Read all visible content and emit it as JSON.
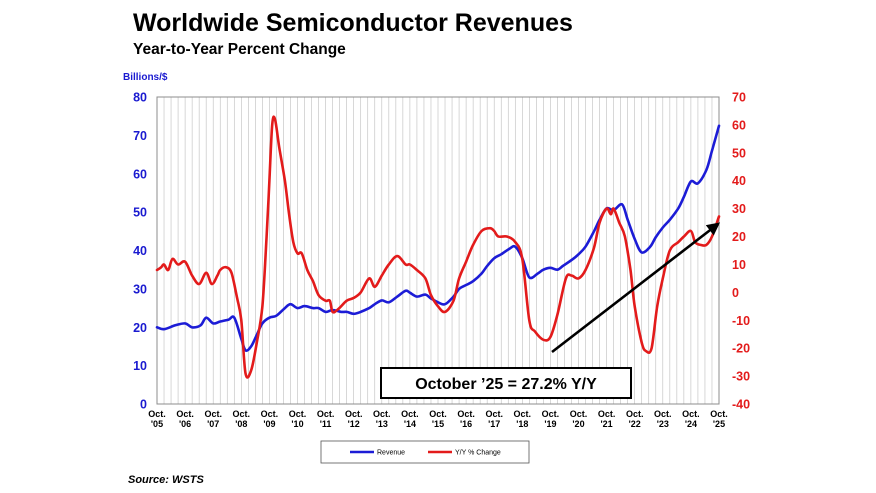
{
  "title": "Worldwide Semiconductor Revenues",
  "subtitle": "Year-to-Year Percent Change",
  "source": "Source: WSTS",
  "annotation": "October ’25 = 27.2% Y/Y",
  "colors": {
    "revenue": "#1c1cd6",
    "yoy": "#e31b1b",
    "grid": "#bdbdbd",
    "arrow": "#000000"
  },
  "chart_data": {
    "type": "line",
    "left_axis": {
      "unit": "Billions/$",
      "range": [
        0,
        80
      ],
      "ticks": [
        "0",
        "10",
        "20",
        "30",
        "40",
        "50",
        "60",
        "70",
        "80"
      ]
    },
    "right_axis": {
      "range": [
        -40,
        70
      ],
      "ticks": [
        "-40",
        "-30",
        "-20",
        "-10",
        "0",
        "10",
        "20",
        "30",
        "40",
        "50",
        "60",
        "70"
      ]
    },
    "x_labels": [
      [
        "Oct.",
        "'05"
      ],
      [
        "Oct.",
        "'06"
      ],
      [
        "Oct.",
        "'07"
      ],
      [
        "Oct.",
        "'08"
      ],
      [
        "Oct.",
        "'09"
      ],
      [
        "Oct.",
        "'10"
      ],
      [
        "Oct.",
        "'11"
      ],
      [
        "Oct.",
        "'12"
      ],
      [
        "Oct.",
        "'13"
      ],
      [
        "Oct.",
        "'14"
      ],
      [
        "Oct.",
        "'15"
      ],
      [
        "Oct.",
        "'16"
      ],
      [
        "Oct.",
        "'17"
      ],
      [
        "Oct.",
        "'18"
      ],
      [
        "Oct.",
        "'19"
      ],
      [
        "Oct.",
        "'20"
      ],
      [
        "Oct.",
        "'21"
      ],
      [
        "Oct.",
        "'22"
      ],
      [
        "Oct.",
        "'23"
      ],
      [
        "Oct.",
        "'24"
      ],
      [
        "Oct.",
        "'25"
      ]
    ],
    "x_range": [
      2005.75,
      2025.75
    ],
    "grid": "vertical",
    "legend": {
      "position": "bottom-center",
      "entries": [
        "Revenue",
        "Y/Y % Change"
      ]
    },
    "series": [
      {
        "name": "Revenue",
        "axis": "left",
        "points": [
          [
            2005.75,
            20
          ],
          [
            2006.0,
            19.5
          ],
          [
            2006.4,
            20.5
          ],
          [
            2006.75,
            21
          ],
          [
            2007.0,
            20
          ],
          [
            2007.3,
            20.5
          ],
          [
            2007.5,
            22.5
          ],
          [
            2007.75,
            21
          ],
          [
            2008.0,
            21.5
          ],
          [
            2008.3,
            22
          ],
          [
            2008.5,
            22.5
          ],
          [
            2008.75,
            17
          ],
          [
            2008.9,
            14
          ],
          [
            2009.1,
            15
          ],
          [
            2009.3,
            18
          ],
          [
            2009.5,
            21
          ],
          [
            2009.75,
            22.5
          ],
          [
            2010.0,
            23
          ],
          [
            2010.3,
            25
          ],
          [
            2010.5,
            26
          ],
          [
            2010.75,
            25
          ],
          [
            2011.0,
            25.5
          ],
          [
            2011.3,
            25
          ],
          [
            2011.5,
            25
          ],
          [
            2011.75,
            24
          ],
          [
            2012.0,
            24.5
          ],
          [
            2012.3,
            24
          ],
          [
            2012.5,
            24
          ],
          [
            2012.75,
            23.5
          ],
          [
            2013.0,
            24
          ],
          [
            2013.3,
            25
          ],
          [
            2013.5,
            26
          ],
          [
            2013.75,
            27
          ],
          [
            2014.0,
            26.5
          ],
          [
            2014.3,
            28
          ],
          [
            2014.6,
            29.5
          ],
          [
            2014.75,
            29
          ],
          [
            2015.0,
            28
          ],
          [
            2015.3,
            28.5
          ],
          [
            2015.5,
            27.5
          ],
          [
            2015.75,
            26.5
          ],
          [
            2016.0,
            26
          ],
          [
            2016.3,
            28
          ],
          [
            2016.5,
            30
          ],
          [
            2016.75,
            31
          ],
          [
            2017.0,
            32
          ],
          [
            2017.3,
            34
          ],
          [
            2017.5,
            36
          ],
          [
            2017.75,
            38
          ],
          [
            2018.0,
            39
          ],
          [
            2018.3,
            40.5
          ],
          [
            2018.5,
            41
          ],
          [
            2018.75,
            38
          ],
          [
            2019.0,
            33
          ],
          [
            2019.3,
            34
          ],
          [
            2019.5,
            35
          ],
          [
            2019.75,
            35.5
          ],
          [
            2020.0,
            35
          ],
          [
            2020.2,
            36
          ],
          [
            2020.5,
            37.5
          ],
          [
            2020.75,
            39
          ],
          [
            2021.0,
            41
          ],
          [
            2021.3,
            45
          ],
          [
            2021.5,
            48
          ],
          [
            2021.75,
            51
          ],
          [
            2022.0,
            50.5
          ],
          [
            2022.3,
            52
          ],
          [
            2022.5,
            48
          ],
          [
            2022.75,
            43
          ],
          [
            2023.0,
            39.5
          ],
          [
            2023.3,
            41
          ],
          [
            2023.5,
            43.5
          ],
          [
            2023.75,
            46
          ],
          [
            2024.0,
            48
          ],
          [
            2024.3,
            51
          ],
          [
            2024.5,
            54
          ],
          [
            2024.75,
            58
          ],
          [
            2025.0,
            57.5
          ],
          [
            2025.3,
            61
          ],
          [
            2025.5,
            66
          ],
          [
            2025.75,
            72.5
          ]
        ]
      },
      {
        "name": "Y/Y % Change",
        "axis": "right",
        "points": [
          [
            2005.75,
            8
          ],
          [
            2005.9,
            9
          ],
          [
            2006.0,
            10
          ],
          [
            2006.15,
            8
          ],
          [
            2006.3,
            12
          ],
          [
            2006.5,
            10
          ],
          [
            2006.75,
            11
          ],
          [
            2007.0,
            6
          ],
          [
            2007.25,
            3
          ],
          [
            2007.5,
            7
          ],
          [
            2007.7,
            3
          ],
          [
            2007.9,
            6
          ],
          [
            2008.0,
            8
          ],
          [
            2008.2,
            9
          ],
          [
            2008.4,
            7
          ],
          [
            2008.6,
            -2
          ],
          [
            2008.75,
            -10
          ],
          [
            2008.9,
            -29
          ],
          [
            2009.1,
            -28
          ],
          [
            2009.3,
            -18
          ],
          [
            2009.5,
            -5
          ],
          [
            2009.65,
            20
          ],
          [
            2009.75,
            40
          ],
          [
            2009.85,
            60
          ],
          [
            2009.95,
            62
          ],
          [
            2010.1,
            52
          ],
          [
            2010.3,
            40
          ],
          [
            2010.45,
            28
          ],
          [
            2010.6,
            18
          ],
          [
            2010.75,
            14
          ],
          [
            2010.9,
            14
          ],
          [
            2011.1,
            8
          ],
          [
            2011.3,
            4
          ],
          [
            2011.5,
            -1
          ],
          [
            2011.75,
            -3
          ],
          [
            2011.9,
            -3
          ],
          [
            2012.0,
            -7
          ],
          [
            2012.2,
            -6
          ],
          [
            2012.5,
            -3
          ],
          [
            2012.75,
            -2
          ],
          [
            2013.0,
            0
          ],
          [
            2013.3,
            5
          ],
          [
            2013.5,
            2
          ],
          [
            2013.75,
            6
          ],
          [
            2014.0,
            10
          ],
          [
            2014.3,
            13
          ],
          [
            2014.6,
            10
          ],
          [
            2014.75,
            10
          ],
          [
            2015.0,
            8
          ],
          [
            2015.3,
            5
          ],
          [
            2015.5,
            -1
          ],
          [
            2015.75,
            -5
          ],
          [
            2016.0,
            -7
          ],
          [
            2016.3,
            -3
          ],
          [
            2016.5,
            5
          ],
          [
            2016.75,
            11
          ],
          [
            2017.0,
            17
          ],
          [
            2017.3,
            22
          ],
          [
            2017.6,
            23
          ],
          [
            2017.75,
            22
          ],
          [
            2017.9,
            20
          ],
          [
            2018.2,
            20
          ],
          [
            2018.5,
            18
          ],
          [
            2018.75,
            12
          ],
          [
            2019.0,
            -10
          ],
          [
            2019.2,
            -14
          ],
          [
            2019.5,
            -17
          ],
          [
            2019.75,
            -16
          ],
          [
            2020.0,
            -8
          ],
          [
            2020.3,
            5
          ],
          [
            2020.5,
            6
          ],
          [
            2020.75,
            5
          ],
          [
            2021.0,
            8
          ],
          [
            2021.3,
            16
          ],
          [
            2021.5,
            25
          ],
          [
            2021.75,
            30
          ],
          [
            2021.9,
            28
          ],
          [
            2022.0,
            30
          ],
          [
            2022.2,
            25
          ],
          [
            2022.4,
            20
          ],
          [
            2022.6,
            8
          ],
          [
            2022.75,
            -5
          ],
          [
            2023.0,
            -18
          ],
          [
            2023.15,
            -21
          ],
          [
            2023.35,
            -20
          ],
          [
            2023.55,
            -5
          ],
          [
            2023.75,
            5
          ],
          [
            2024.0,
            15
          ],
          [
            2024.3,
            18
          ],
          [
            2024.5,
            20
          ],
          [
            2024.75,
            22
          ],
          [
            2024.9,
            18
          ],
          [
            2025.1,
            17
          ],
          [
            2025.3,
            17
          ],
          [
            2025.5,
            20
          ],
          [
            2025.75,
            27.2
          ]
        ]
      }
    ]
  }
}
